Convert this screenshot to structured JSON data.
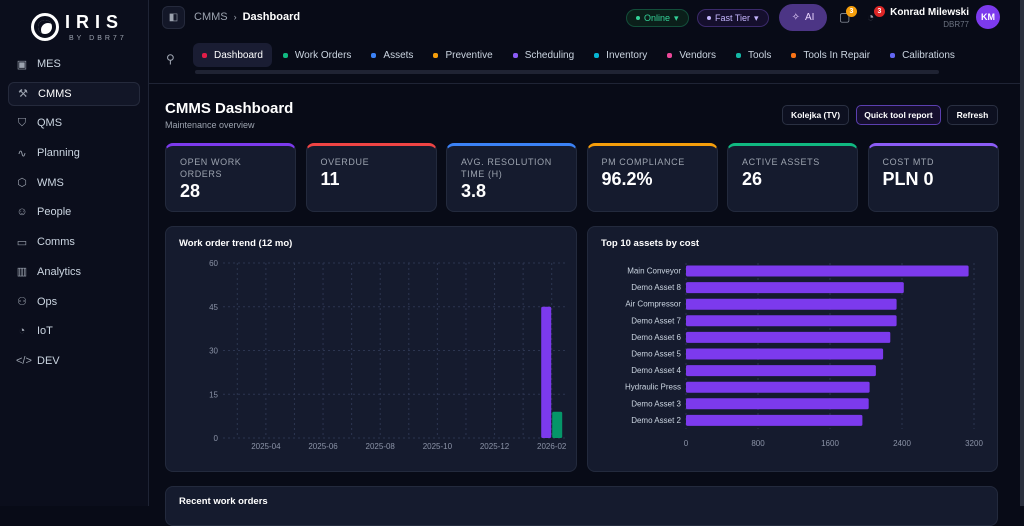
{
  "brand": {
    "name": "IRIS",
    "sub": "BY DBR77"
  },
  "sidebar": {
    "items": [
      {
        "label": "MES",
        "icon": "clipboard-icon",
        "glyph": "▣"
      },
      {
        "label": "CMMS",
        "icon": "wrench-icon",
        "glyph": "⚒",
        "active": true
      },
      {
        "label": "QMS",
        "icon": "shield-icon",
        "glyph": "⛉"
      },
      {
        "label": "Planning",
        "icon": "activity-icon",
        "glyph": "∿"
      },
      {
        "label": "WMS",
        "icon": "box-icon",
        "glyph": "⬡"
      },
      {
        "label": "People",
        "icon": "users-icon",
        "glyph": "☺"
      },
      {
        "label": "Comms",
        "icon": "message-icon",
        "glyph": "▭"
      },
      {
        "label": "Analytics",
        "icon": "bar-chart-icon",
        "glyph": "▥"
      },
      {
        "label": "Ops",
        "icon": "network-icon",
        "glyph": "⚇"
      },
      {
        "label": "IoT",
        "icon": "bell-icon",
        "glyph": "◔"
      },
      {
        "label": "DEV",
        "icon": "code-icon",
        "glyph": "</>"
      }
    ]
  },
  "header": {
    "breadcrumb": [
      "CMMS",
      "Dashboard"
    ],
    "status": "Online",
    "tier": "Fast Tier",
    "ai": "AI",
    "inbox_count": "3",
    "notif_count": "3",
    "user": {
      "name": "Konrad Milewski",
      "org": "DBR77",
      "initials": "KM"
    }
  },
  "tabs": [
    {
      "label": "Dashboard",
      "color": "#e11d48",
      "active": true
    },
    {
      "label": "Work Orders",
      "color": "#10b981"
    },
    {
      "label": "Assets",
      "color": "#3b82f6"
    },
    {
      "label": "Preventive",
      "color": "#f59e0b"
    },
    {
      "label": "Scheduling",
      "color": "#8b5cf6"
    },
    {
      "label": "Inventory",
      "color": "#06b6d4"
    },
    {
      "label": "Vendors",
      "color": "#ec4899"
    },
    {
      "label": "Tools",
      "color": "#14b8a6"
    },
    {
      "label": "Tools In Repair",
      "color": "#f97316"
    },
    {
      "label": "Calibrations",
      "color": "#6366f1"
    }
  ],
  "page": {
    "title": "CMMS Dashboard",
    "subtitle": "Maintenance overview",
    "buttons": {
      "queue": "Kolejka (TV)",
      "quick": "Quick tool report",
      "refresh": "Refresh"
    }
  },
  "kpis": [
    {
      "label": "OPEN WORK ORDERS",
      "value": "28",
      "color": "#7c3aed"
    },
    {
      "label": "OVERDUE",
      "value": "11",
      "color": "#ef4444"
    },
    {
      "label": "AVG. RESOLUTION TIME (H)",
      "value": "3.8",
      "color": "#3b82f6"
    },
    {
      "label": "PM COMPLIANCE",
      "value": "96.2%",
      "color": "#f59e0b"
    },
    {
      "label": "ACTIVE ASSETS",
      "value": "26",
      "color": "#10b981"
    },
    {
      "label": "COST MTD",
      "value": "PLN 0",
      "color": "#8b5cf6"
    }
  ],
  "chart_data": [
    {
      "type": "bar",
      "title": "Work order trend (12 mo)",
      "categories": [
        "2025-03",
        "2025-04",
        "2025-05",
        "2025-06",
        "2025-07",
        "2025-08",
        "2025-09",
        "2025-10",
        "2025-11",
        "2025-12",
        "2026-01",
        "2026-02"
      ],
      "x_tick_labels": [
        "2025-04",
        "2025-06",
        "2025-08",
        "2025-10",
        "2025-12",
        "2026-02"
      ],
      "series": [
        {
          "color": "#7c3aed",
          "values": [
            0,
            0,
            0,
            0,
            0,
            0,
            0,
            0,
            0,
            0,
            0,
            45
          ]
        },
        {
          "color": "#059669",
          "values": [
            0,
            0,
            0,
            0,
            0,
            0,
            0,
            0,
            0,
            0,
            0,
            9
          ]
        }
      ],
      "ylim": [
        0,
        60
      ],
      "yticks": [
        0,
        15,
        30,
        45,
        60
      ],
      "grid": true
    },
    {
      "type": "bar",
      "orientation": "horizontal",
      "title": "Top 10 assets by cost",
      "categories": [
        "Main Conveyor",
        "Demo Asset 8",
        "Air Compressor",
        "Demo Asset 7",
        "Demo Asset 6",
        "Demo Asset 5",
        "Demo Asset 4",
        "Hydraulic Press",
        "Demo Asset 3",
        "Demo Asset 2"
      ],
      "values": [
        3140,
        2420,
        2340,
        2340,
        2270,
        2190,
        2110,
        2040,
        2030,
        1960
      ],
      "color": "#7c3aed",
      "xlim": [
        0,
        3200
      ],
      "xticks": [
        0,
        800,
        1600,
        2400,
        3200
      ],
      "grid": true
    }
  ],
  "recent": {
    "title": "Recent work orders"
  }
}
